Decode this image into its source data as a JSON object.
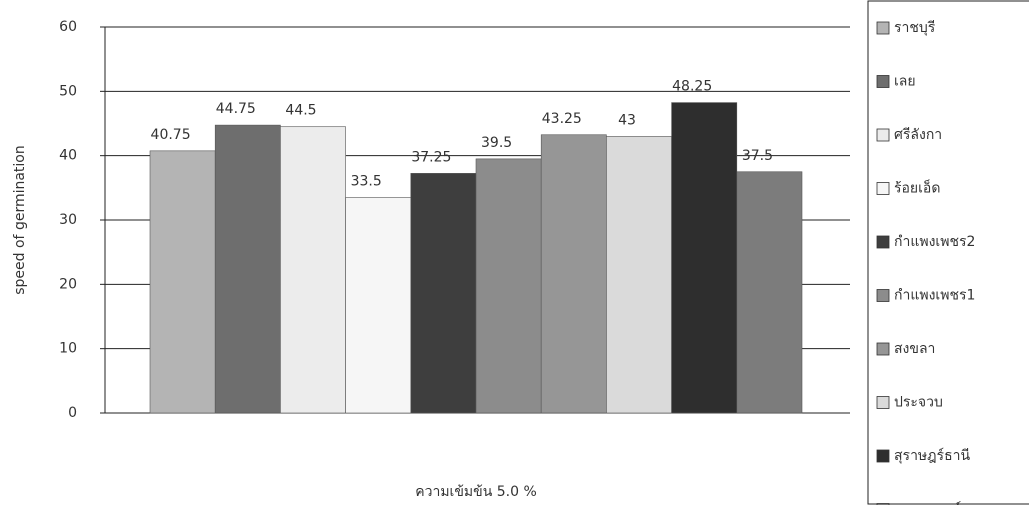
{
  "chart_data": {
    "type": "bar",
    "categories": [
      "ความเข้มข้น 5.0 %"
    ],
    "ylabel": "speed of germination",
    "series": [
      {
        "name": "ราชบุรี",
        "color": "#b4b4b4",
        "values": [
          40.75
        ]
      },
      {
        "name": "เลย",
        "color": "#6e6e6e",
        "values": [
          44.75
        ]
      },
      {
        "name": "ศรีลังกา",
        "color": "#ececec",
        "values": [
          44.5
        ]
      },
      {
        "name": "ร้อยเอ็ด",
        "color": "#f6f6f6",
        "values": [
          33.5
        ]
      },
      {
        "name": "กำแพงเพชร2",
        "color": "#3e3e3e",
        "values": [
          37.25
        ]
      },
      {
        "name": "กำแพงเพชร1",
        "color": "#8c8c8c",
        "values": [
          39.5
        ]
      },
      {
        "name": "สงขลา",
        "color": "#969696",
        "values": [
          43.25
        ]
      },
      {
        "name": "ประจวบ",
        "color": "#dadada",
        "values": [
          43
        ]
      },
      {
        "name": "สุราษฎร์ธานี",
        "color": "#2e2e2e",
        "values": [
          48.25
        ]
      },
      {
        "name": "นครสวรรค์",
        "color": "#7c7c7c",
        "values": [
          37.5
        ]
      }
    ],
    "ylim": [
      0,
      60
    ],
    "yticks": [
      0,
      10,
      20,
      30,
      40,
      50,
      60
    ],
    "grid": true,
    "legend": "right"
  }
}
